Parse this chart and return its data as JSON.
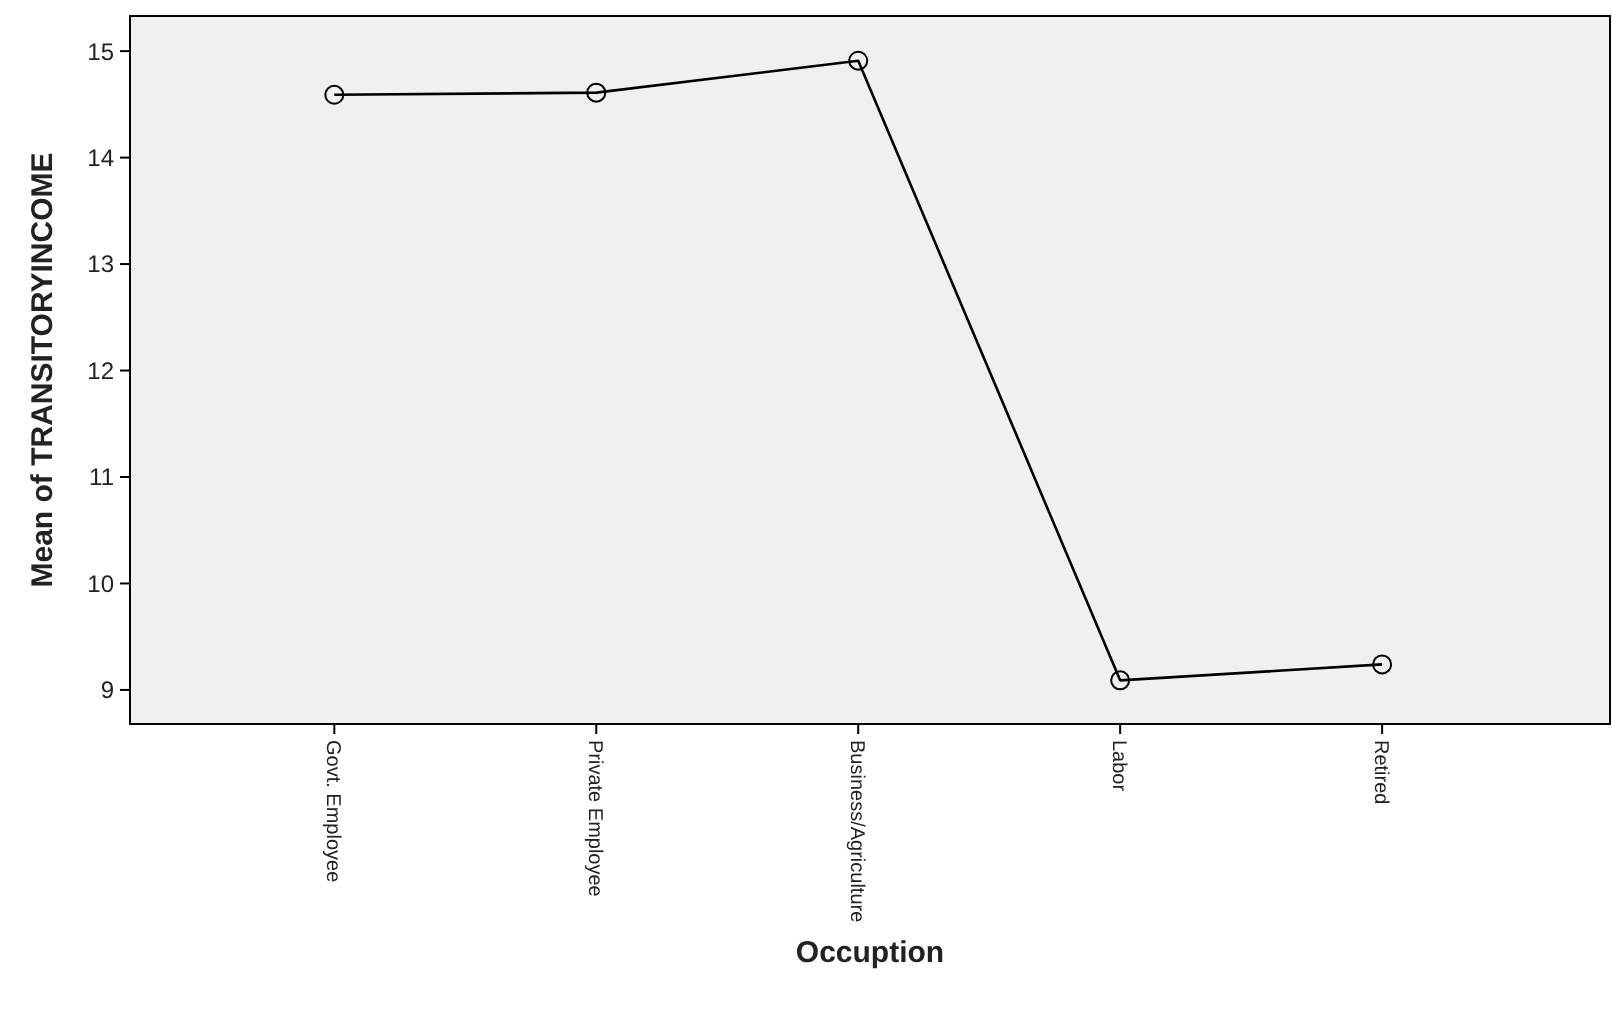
{
  "chart_data": {
    "type": "line",
    "xlabel": "Occuption",
    "ylabel": "Mean of TRANSITORYINCOME",
    "categories": [
      "Govt. Employee",
      "Private Employee",
      "Business/Agriculture",
      "Labor",
      "Retired"
    ],
    "values": [
      14.59,
      14.61,
      14.91,
      9.09,
      9.24
    ],
    "color": "#000000",
    "marker": "circle",
    "ylim": [
      8.68,
      15.33
    ],
    "yticks": [
      9,
      10,
      11,
      12,
      13,
      14,
      15
    ],
    "grid": false
  }
}
